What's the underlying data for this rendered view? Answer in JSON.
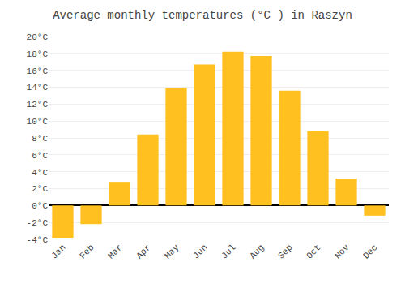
{
  "chart_data": {
    "type": "bar",
    "title": "Average monthly temperatures (°C ) in Raszyn",
    "categories": [
      "Jan",
      "Feb",
      "Mar",
      "Apr",
      "May",
      "Jun",
      "Jul",
      "Aug",
      "Sep",
      "Oct",
      "Nov",
      "Dec"
    ],
    "values": [
      -3.8,
      -2.2,
      2.8,
      8.4,
      13.9,
      16.7,
      18.2,
      17.7,
      13.6,
      8.8,
      3.2,
      -1.2
    ],
    "color": "#FFC020",
    "ylim": [
      -4,
      20
    ],
    "yticks": [
      {
        "value": -4,
        "label": "-4°C"
      },
      {
        "value": -2,
        "label": "-2°C"
      },
      {
        "value": 0,
        "label": "0°C"
      },
      {
        "value": 2,
        "label": "2°C"
      },
      {
        "value": 4,
        "label": "4°C"
      },
      {
        "value": 6,
        "label": "6°C"
      },
      {
        "value": 8,
        "label": "8°C"
      },
      {
        "value": 10,
        "label": "10°C"
      },
      {
        "value": 12,
        "label": "12°C"
      },
      {
        "value": 14,
        "label": "14°C"
      },
      {
        "value": 16,
        "label": "16°C"
      },
      {
        "value": 18,
        "label": "18°C"
      },
      {
        "value": 20,
        "label": "20°C"
      }
    ],
    "grid": true
  }
}
